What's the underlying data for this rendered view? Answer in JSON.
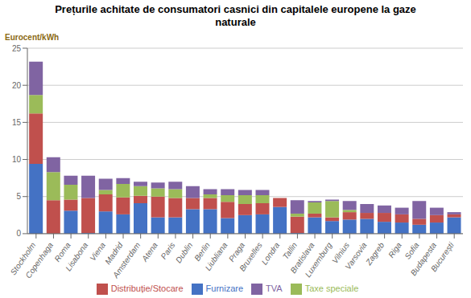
{
  "chart_data": {
    "type": "bar",
    "title": "Prețurile achitate de consumatori casnici din capitalele europene la gaze\nnaturale",
    "ylabel": "Eurocent/kWh",
    "categories": [
      "Stockholm",
      "Copenhaga",
      "Roma",
      "Lisabona",
      "Viena",
      "Madrid",
      "Amsterdam",
      "Atena",
      "Paris",
      "Dublin",
      "Berlin",
      "Liubliana",
      "Praga",
      "Bruxelles",
      "Londra",
      "Tallin",
      "Bratislava",
      "Luxemburg",
      "Vilnius",
      "Varsovia",
      "Zagreb",
      "Riga",
      "Sofia",
      "Budapesta",
      "București"
    ],
    "series": [
      {
        "name": "Furnizare",
        "color": "#4472C4",
        "values": [
          9.4,
          0.0,
          3.1,
          0.1,
          3.0,
          2.6,
          4.1,
          2.2,
          2.2,
          3.3,
          3.3,
          2.1,
          2.5,
          2.6,
          3.6,
          0.1,
          2.2,
          1.7,
          1.9,
          2.0,
          1.6,
          1.5,
          1.2,
          1.5,
          2.2
        ]
      },
      {
        "name": "Distribuție/Stocare",
        "color": "#C0504D",
        "values": [
          6.8,
          4.5,
          1.5,
          4.7,
          2.3,
          2.3,
          1.0,
          2.8,
          2.6,
          1.5,
          1.5,
          2.2,
          1.5,
          1.5,
          1.2,
          2.2,
          0.5,
          0.5,
          1.0,
          0.8,
          1.2,
          1.1,
          0.8,
          1.0,
          0.4
        ]
      },
      {
        "name": "Taxe speciale",
        "color": "#9BBB59",
        "values": [
          2.5,
          3.8,
          2.0,
          0.0,
          0.6,
          1.8,
          1.3,
          1.1,
          1.2,
          0.0,
          0.5,
          0.9,
          1.2,
          1.1,
          0.0,
          0.4,
          1.5,
          2.2,
          0.3,
          0.0,
          0.0,
          0.0,
          0.0,
          0.0,
          0.0
        ]
      },
      {
        "name": "TVA",
        "color": "#8064A2",
        "values": [
          4.5,
          2.0,
          1.2,
          3.0,
          1.5,
          0.8,
          0.6,
          0.8,
          1.0,
          1.6,
          0.7,
          0.8,
          0.7,
          0.7,
          0.0,
          1.8,
          0.2,
          0.2,
          1.2,
          1.2,
          1.0,
          0.9,
          2.4,
          1.0,
          0.3
        ]
      }
    ],
    "ylim": [
      0,
      25
    ],
    "yticks": [
      0,
      5,
      10,
      15,
      20,
      25
    ],
    "stacked": true,
    "grid": true
  }
}
